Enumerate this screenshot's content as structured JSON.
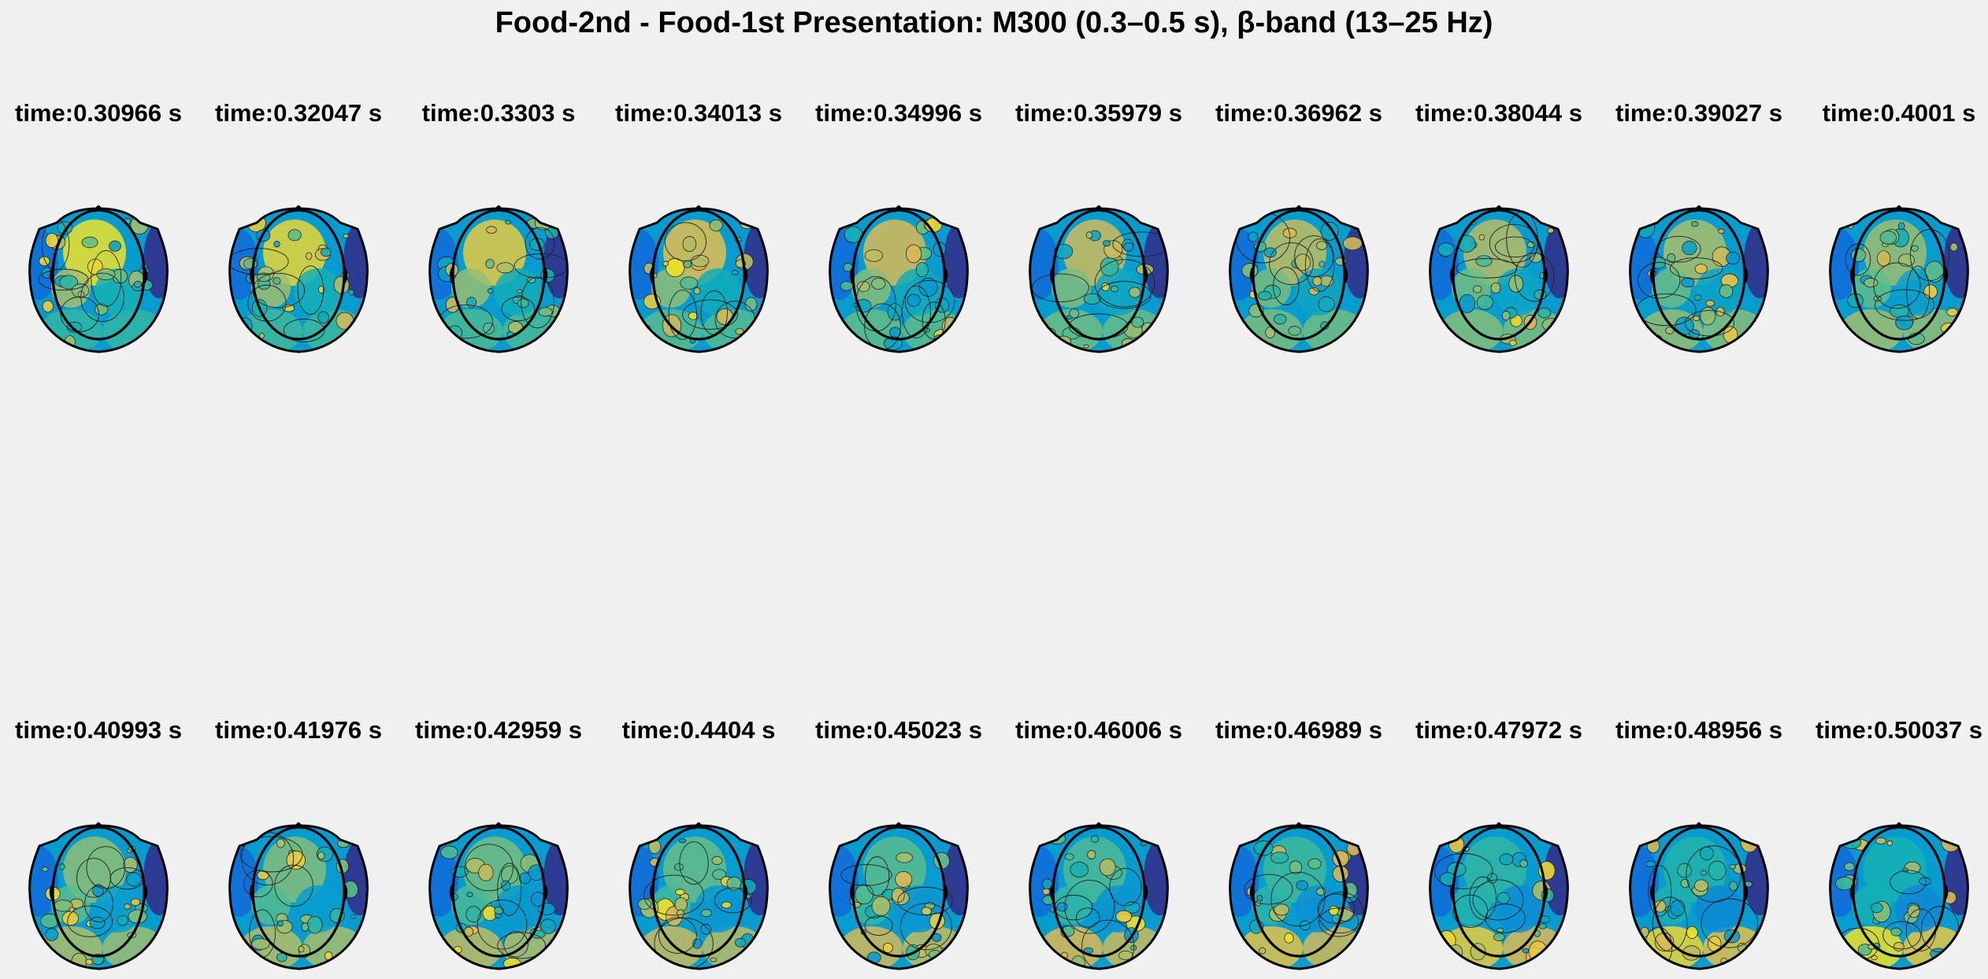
{
  "title": "Food-2nd - Food-1st Presentation: M300 (0.3–0.5 s), β-band (13–25 Hz)",
  "chart_data": {
    "type": "heatmap",
    "subtype": "topographic-scalp-maps",
    "title": "Food-2nd - Food-1st Presentation: M300 (0.3–0.5 s), β-band (13–25 Hz)",
    "colormap": "parula",
    "grid": false,
    "layout": {
      "rows": 2,
      "columns": 10
    },
    "panels": [
      {
        "label": "time:0.30966 s",
        "time_s": 0.30966
      },
      {
        "label": "time:0.32047 s",
        "time_s": 0.32047
      },
      {
        "label": "time:0.3303 s",
        "time_s": 0.3303
      },
      {
        "label": "time:0.34013 s",
        "time_s": 0.34013
      },
      {
        "label": "time:0.34996 s",
        "time_s": 0.34996
      },
      {
        "label": "time:0.35979 s",
        "time_s": 0.35979
      },
      {
        "label": "time:0.36962 s",
        "time_s": 0.36962
      },
      {
        "label": "time:0.38044 s",
        "time_s": 0.38044
      },
      {
        "label": "time:0.39027 s",
        "time_s": 0.39027
      },
      {
        "label": "time:0.4001 s",
        "time_s": 0.4001
      },
      {
        "label": "time:0.40993 s",
        "time_s": 0.40993
      },
      {
        "label": "time:0.41976 s",
        "time_s": 0.41976
      },
      {
        "label": "time:0.42959 s",
        "time_s": 0.42959
      },
      {
        "label": "time:0.4404 s",
        "time_s": 0.4404
      },
      {
        "label": "time:0.45023 s",
        "time_s": 0.45023
      },
      {
        "label": "time:0.46006 s",
        "time_s": 0.46006
      },
      {
        "label": "time:0.46989 s",
        "time_s": 0.46989
      },
      {
        "label": "time:0.47972 s",
        "time_s": 0.47972
      },
      {
        "label": "time:0.48956 s",
        "time_s": 0.48956
      },
      {
        "label": "time:0.50037 s",
        "time_s": 0.50037
      }
    ]
  }
}
